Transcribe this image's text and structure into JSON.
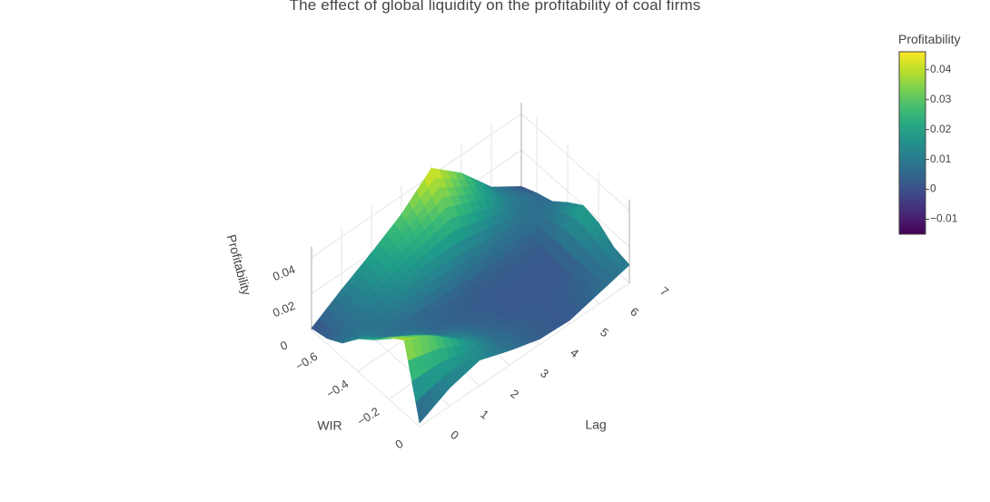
{
  "chart_data": {
    "type": "surface",
    "title": "The effect of global liquidity on the profitability of coal firms",
    "xlabel": "Lag",
    "ylabel": "WIR",
    "zlabel": "Profitability",
    "x": [
      0,
      1,
      2,
      3,
      4,
      5,
      6,
      7
    ],
    "y": [
      -0.7,
      -0.6,
      -0.5,
      -0.4,
      -0.3,
      -0.2,
      -0.1,
      0
    ],
    "z": [
      [
        0.001,
        0.011,
        0.02,
        0.03,
        0.044,
        0.03,
        0.011,
        0.0
      ],
      [
        0.003,
        0.01,
        0.018,
        0.024,
        0.03,
        0.022,
        0.012,
        0.004
      ],
      [
        0.008,
        0.008,
        0.013,
        0.014,
        0.012,
        0.01,
        0.008,
        0.007
      ],
      [
        0.018,
        0.008,
        0.005,
        0.004,
        0.003,
        0.003,
        0.003,
        0.014
      ],
      [
        0.025,
        0.015,
        0.006,
        0.003,
        0.002,
        0.002,
        0.002,
        0.02
      ],
      [
        0.034,
        0.024,
        0.012,
        0.005,
        0.002,
        0.002,
        0.002,
        0.018
      ],
      [
        0.04,
        0.031,
        0.017,
        0.007,
        0.003,
        0.002,
        0.004,
        0.012
      ],
      [
        0.002,
        0.01,
        0.014,
        0.008,
        0.003,
        0.002,
        0.006,
        0.01
      ]
    ],
    "x_ticks": [
      "0",
      "1",
      "2",
      "3",
      "4",
      "5",
      "6",
      "7"
    ],
    "y_ticks": [
      "−0.6",
      "−0.4",
      "−0.2",
      "0"
    ],
    "z_ticks": [
      "0",
      "0.02",
      "0.04"
    ],
    "x_tick_values": [
      0,
      1,
      2,
      3,
      4,
      5,
      6,
      7
    ],
    "y_tick_values": [
      -0.6,
      -0.4,
      -0.2,
      0
    ],
    "z_tick_values": [
      0,
      0.02,
      0.04
    ],
    "xlim": [
      0,
      7
    ],
    "ylim": [
      -0.7,
      0
    ],
    "zlim": [
      0,
      0.046
    ],
    "colorscale": "viridis",
    "colorbar": {
      "title": "Profitability",
      "range": [
        -0.015,
        0.046
      ],
      "ticks": [
        "−0.01",
        "0",
        "0.01",
        "0.02",
        "0.03",
        "0.04"
      ],
      "tick_values": [
        -0.01,
        0,
        0.01,
        0.02,
        0.03,
        0.04
      ]
    },
    "grid": true
  }
}
